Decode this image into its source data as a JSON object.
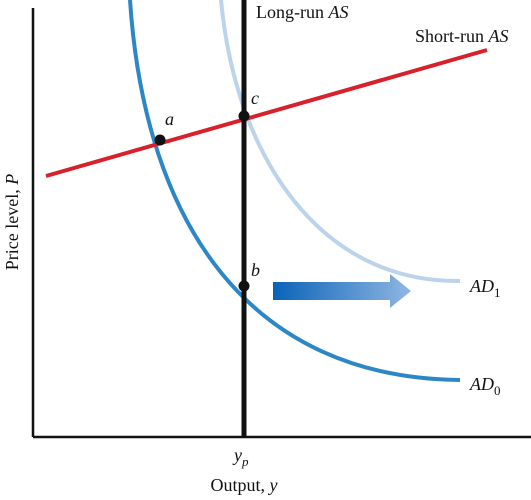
{
  "labels": {
    "long_run_prefix": "Long-run ",
    "long_run_as": "AS",
    "short_run_prefix": "Short-run ",
    "short_run_as": "AS",
    "ad1_main": "AD",
    "ad1_sub": "1",
    "ad0_main": "AD",
    "ad0_sub": "0",
    "point_a": "a",
    "point_b": "b",
    "point_c": "c",
    "yp_main": "y",
    "yp_sub": "p",
    "x_axis_prefix": "Output, ",
    "x_axis_var": "y",
    "y_axis_prefix": "Price level, ",
    "y_axis_var": "P"
  },
  "colors": {
    "axis": "#111111",
    "long_run_as": "#111111",
    "short_run_as": "#d7212b",
    "ad0": "#2d86c6",
    "ad1": "#bcd3ec",
    "points": "#111111",
    "arrow_start": "#0a63b8",
    "arrow_end": "#8fb6e2"
  }
}
